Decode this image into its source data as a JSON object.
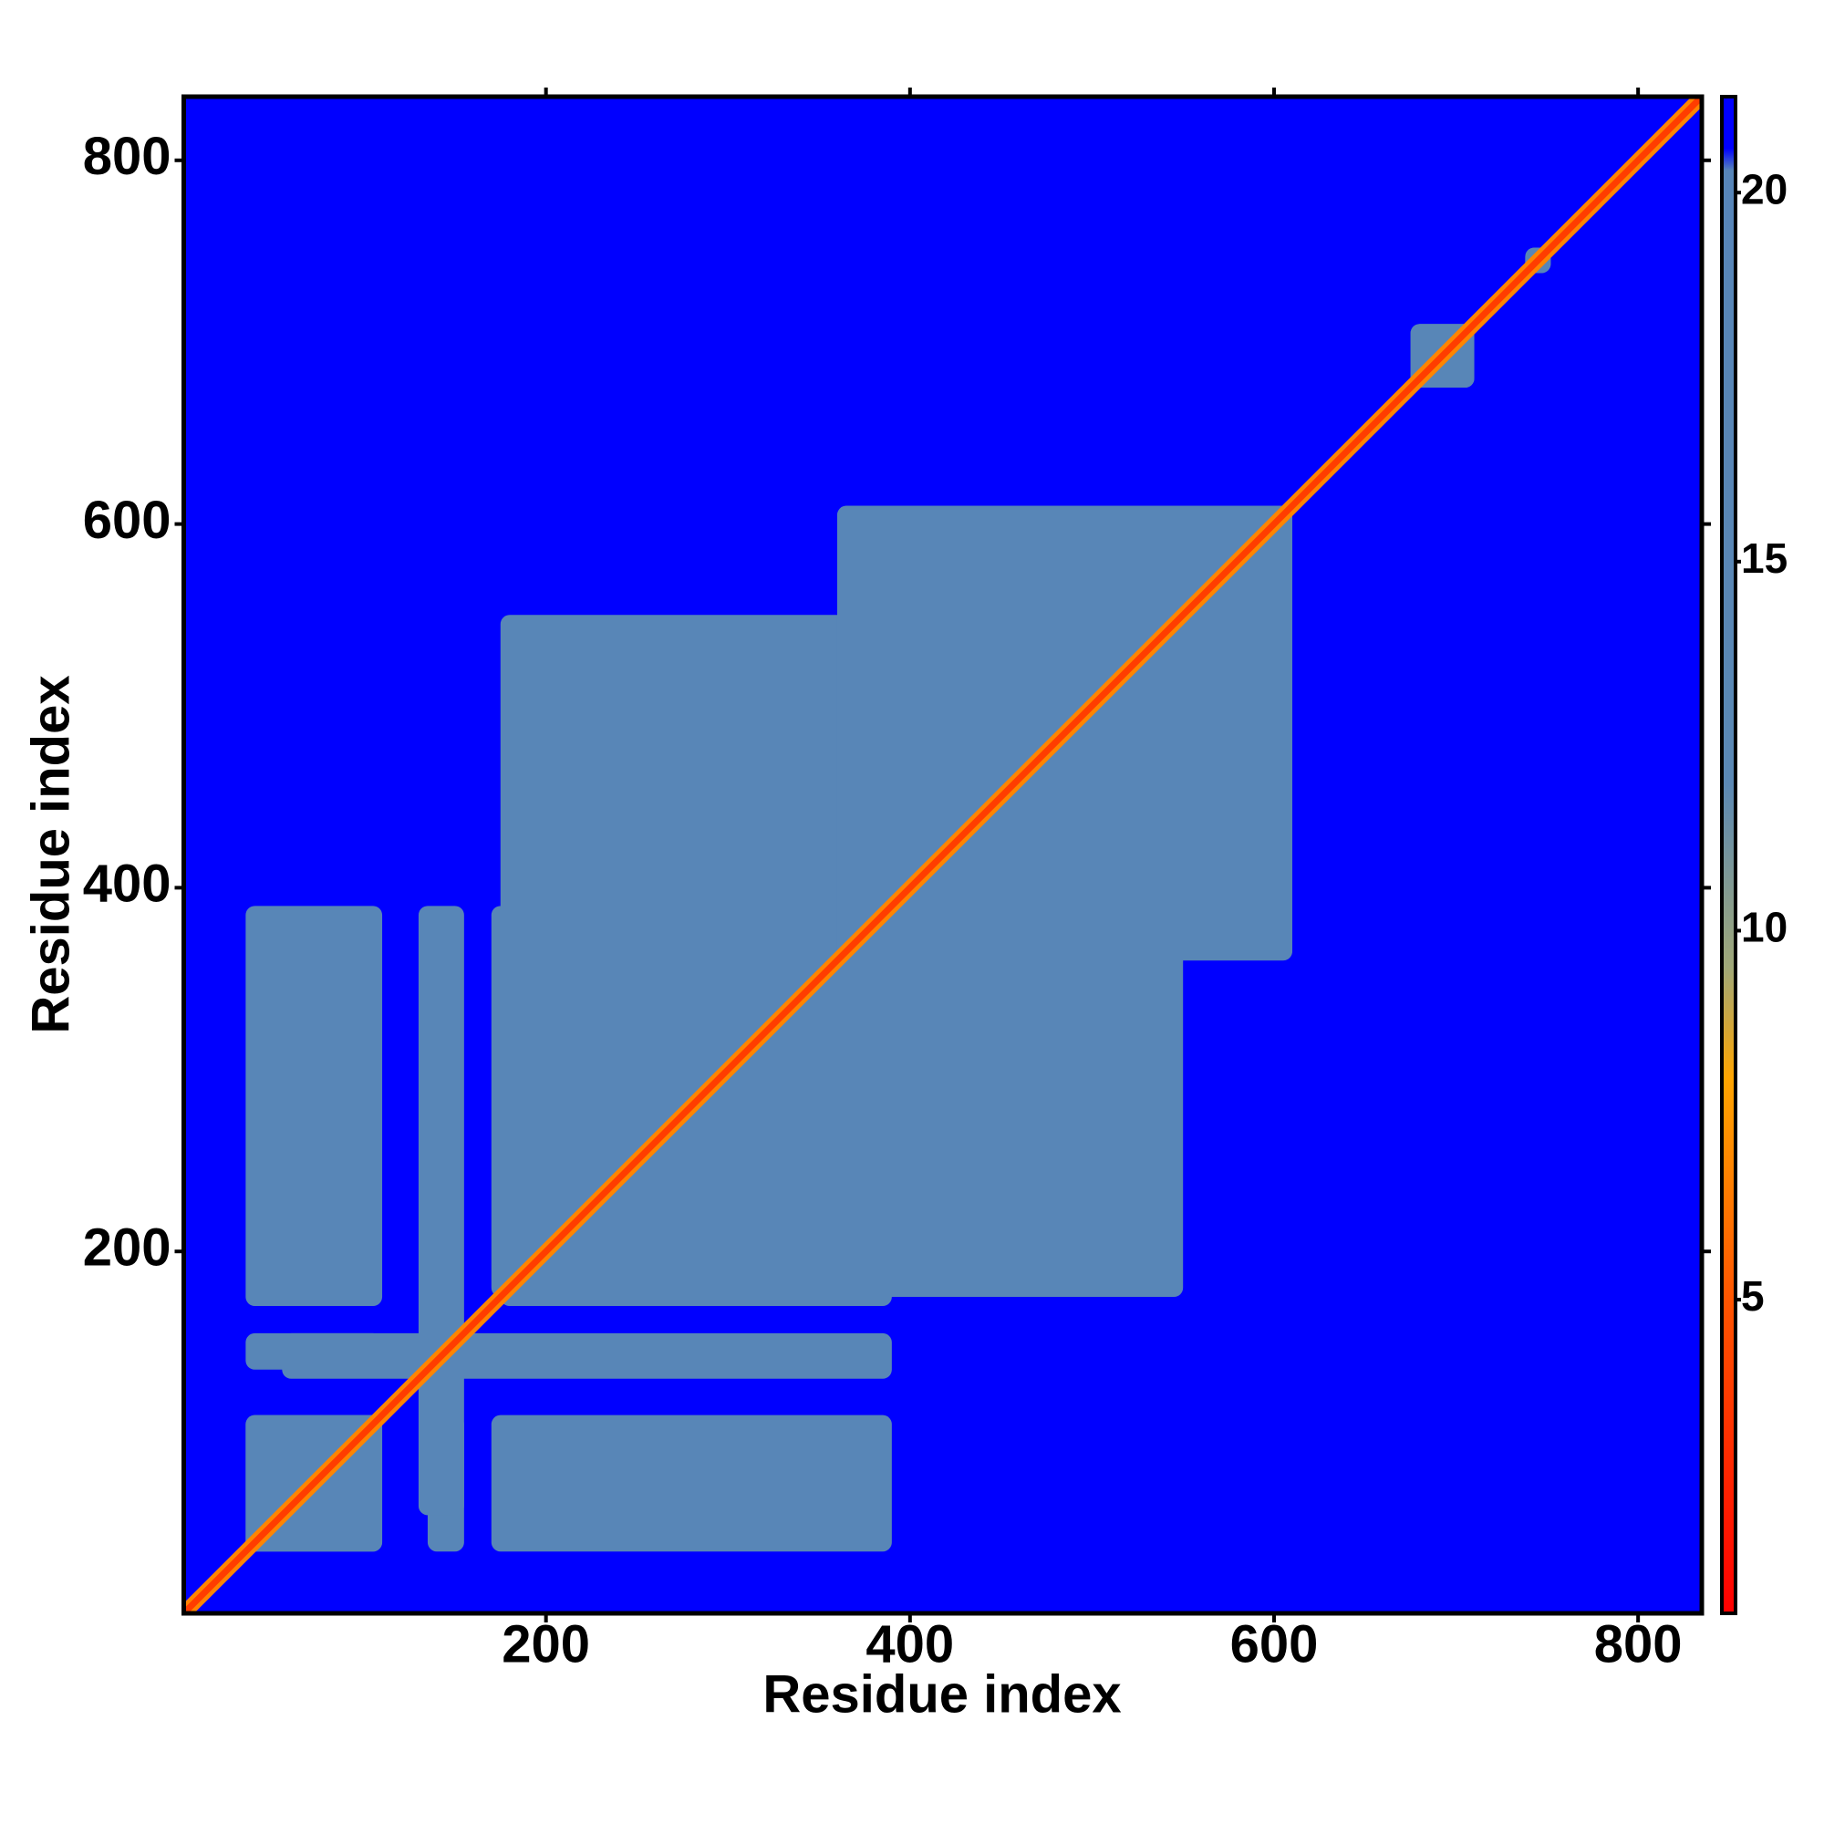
{
  "chart_data": {
    "type": "heatmap",
    "xlabel": "Residue index",
    "ylabel": "Residue index",
    "xlim": [
      1,
      835
    ],
    "ylim": [
      1,
      835
    ],
    "xticks": [
      200,
      400,
      600,
      800
    ],
    "yticks": [
      200,
      400,
      600,
      800
    ],
    "clim": [
      0.75,
      21.3
    ],
    "cticks": [
      5,
      10,
      15,
      20
    ],
    "colorscale": [
      [
        0.75,
        "#ff0000"
      ],
      [
        5,
        "#ff5500"
      ],
      [
        8,
        "#ffa500"
      ],
      [
        9.5,
        "#a0a878"
      ],
      [
        12,
        "#5b88b4"
      ],
      [
        20.3,
        "#5785b8"
      ],
      [
        20.6,
        "#0000ff"
      ],
      [
        21.3,
        "#0000ff"
      ]
    ],
    "background_value": 21,
    "diagonal_value": 3.8,
    "regions": [
      {
        "x": [
          35,
          110
        ],
        "y": [
          35,
          110
        ],
        "value": 18
      },
      {
        "x": [
          35,
          110
        ],
        "y": [
          170,
          390
        ],
        "value": 18
      },
      {
        "x": [
          35,
          110
        ],
        "y": [
          135,
          155
        ],
        "value": 18
      },
      {
        "x": [
          130,
          155
        ],
        "y": [
          55,
          390
        ],
        "value": 18
      },
      {
        "x": [
          175,
          390
        ],
        "y": [
          170,
          550
        ],
        "value": 18
      },
      {
        "x": [
          360,
          610
        ],
        "y": [
          360,
          610
        ],
        "value": 18
      },
      {
        "x": [
          675,
          710
        ],
        "y": [
          675,
          710
        ],
        "value": 18
      },
      {
        "x": [
          738,
          752
        ],
        "y": [
          738,
          752
        ],
        "value": 18
      }
    ]
  }
}
